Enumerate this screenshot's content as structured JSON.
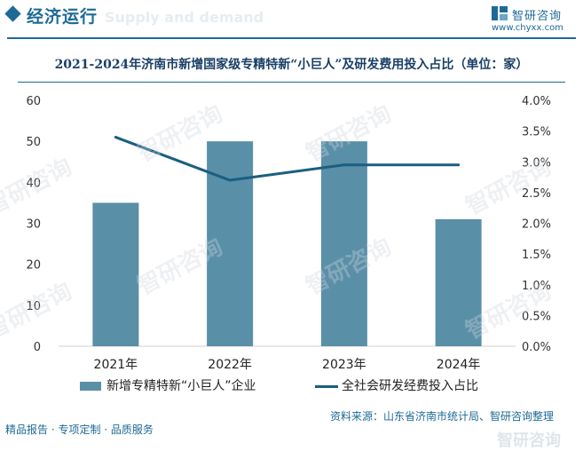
{
  "header": {
    "section_title": "经济运行",
    "watermark_text": "Supply and demand",
    "logo_name": "智研咨询",
    "logo_url": "www.chyxx.com"
  },
  "watermark": {
    "text": "智研咨询"
  },
  "chart_data": {
    "type": "bar",
    "title": "2021-2024年济南市新增国家级专精特新“小巨人”及研发费用投入占比（单位：家）",
    "categories": [
      "2021年",
      "2022年",
      "2023年",
      "2024年"
    ],
    "series": [
      {
        "name": "新增专精特新“小巨人”企业",
        "type": "bar",
        "axis": "left",
        "values": [
          35,
          50,
          50,
          31
        ]
      },
      {
        "name": "全社会研发经费投入占比",
        "type": "line",
        "axis": "right",
        "values": [
          3.4,
          2.7,
          2.95,
          2.95
        ]
      }
    ],
    "left_axis": {
      "ylim": [
        0,
        60
      ],
      "ticks": [
        "0",
        "10",
        "20",
        "30",
        "40",
        "50",
        "60"
      ]
    },
    "right_axis": {
      "ylim": [
        0,
        4
      ],
      "ticks": [
        "0.0%",
        "0.5%",
        "1.0%",
        "1.5%",
        "2.0%",
        "2.5%",
        "3.0%",
        "3.5%",
        "4.0%"
      ]
    },
    "colors": {
      "bar": "#5a8fa8",
      "line": "#1b5e80"
    },
    "legend_position": "bottom",
    "grid": false
  },
  "footer": {
    "left_text": "精品报告 · 专项定制 · 品质服务",
    "source_text": "资料来源：山东省济南市统计局、智研咨询整理"
  }
}
